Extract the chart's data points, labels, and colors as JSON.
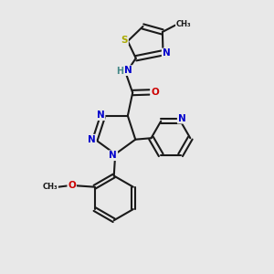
{
  "bg": "#e8e8e8",
  "bc": "#1a1a1a",
  "nc": "#0000cc",
  "oc": "#cc0000",
  "sc": "#aaaa00",
  "hc": "#448888",
  "lw": 1.5,
  "fs": 7.5,
  "xlim": [
    0,
    10
  ],
  "ylim": [
    0,
    10
  ]
}
